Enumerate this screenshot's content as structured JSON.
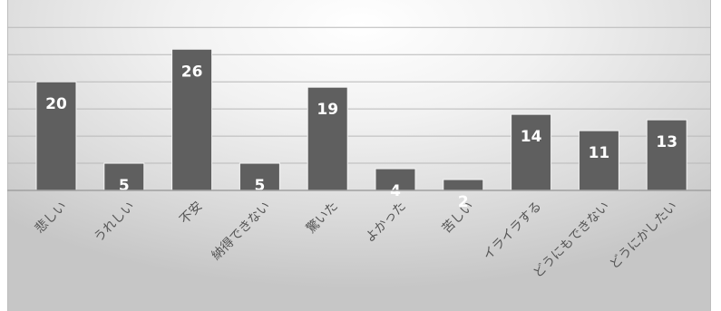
{
  "chart_data": {
    "type": "bar",
    "categories": [
      "悲しい",
      "うれしい",
      "不安",
      "納得できない",
      "驚いた",
      "よかった",
      "苦しい",
      "イライラする",
      "どうにもできない",
      "どうにかしたい"
    ],
    "values": [
      20,
      5,
      26,
      5,
      19,
      4,
      2,
      14,
      11,
      13
    ],
    "title": "",
    "xlabel": "",
    "ylabel": "",
    "ylim": [
      0,
      30
    ],
    "grid": true,
    "data_labels": true,
    "colors": {
      "bar": "#5f5f5f",
      "label": "#ffffff",
      "tick": "#555555"
    }
  }
}
